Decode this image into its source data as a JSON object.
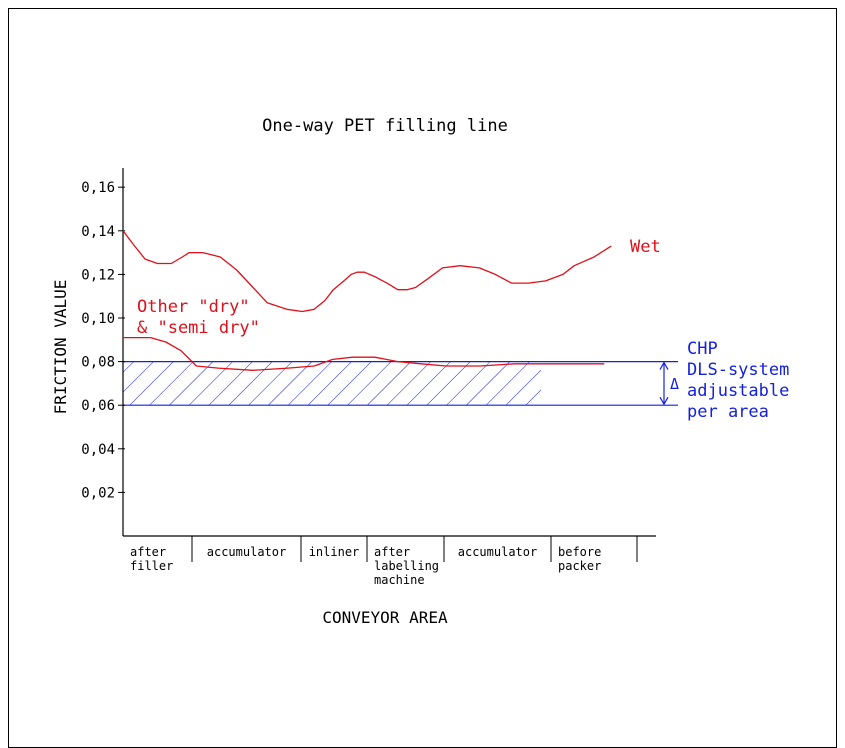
{
  "chart_data": {
    "type": "line",
    "title": "One-way PET filling line",
    "xlabel": "CONVEYOR AREA",
    "ylabel": "FRICTION VALUE",
    "ylim": [
      0,
      0.17
    ],
    "yticks": [
      "0,16",
      "0,14",
      "0,12",
      "0,10",
      "0,08",
      "0,06",
      "0,04",
      "0,02"
    ],
    "ytick_values": [
      0.16,
      0.14,
      0.12,
      0.1,
      0.08,
      0.06,
      0.04,
      0.02
    ],
    "categories": [
      {
        "lines": [
          "after",
          "filler"
        ]
      },
      {
        "lines": [
          "accumulator"
        ]
      },
      {
        "lines": [
          "inliner"
        ]
      },
      {
        "lines": [
          "after",
          "labelling",
          "machine"
        ]
      },
      {
        "lines": [
          "accumulator"
        ]
      },
      {
        "lines": [
          "before",
          "packer"
        ]
      }
    ],
    "series": [
      {
        "name": "Wet",
        "color": "#e0101a",
        "x": [
          0.0,
          0.17,
          0.32,
          0.5,
          0.7,
          0.86,
          0.96,
          1.1,
          1.26,
          1.41,
          1.56,
          1.69,
          1.87,
          2.02,
          2.2,
          2.36,
          2.49,
          2.65,
          2.76,
          2.85,
          2.96,
          3.1,
          3.26,
          3.4,
          3.52,
          3.63,
          3.79,
          3.98,
          4.15,
          4.33,
          4.48,
          4.63,
          4.79,
          4.95,
          5.14,
          5.27,
          5.5,
          5.7
        ],
        "y": [
          0.14,
          0.133,
          0.127,
          0.125,
          0.125,
          0.128,
          0.13,
          0.13,
          0.128,
          0.122,
          0.114,
          0.107,
          0.104,
          0.103,
          0.104,
          0.108,
          0.113,
          0.117,
          0.12,
          0.121,
          0.121,
          0.119,
          0.116,
          0.113,
          0.113,
          0.114,
          0.118,
          0.123,
          0.124,
          0.123,
          0.12,
          0.116,
          0.116,
          0.117,
          0.12,
          0.124,
          0.128,
          0.133
        ]
      },
      {
        "name": "Other \"dry\" & \"semi dry\"",
        "color": "#e0101a",
        "x": [
          0.0,
          0.4,
          0.62,
          0.84,
          1.04,
          1.24,
          1.56,
          1.88,
          2.2,
          2.48,
          2.78,
          3.1,
          3.4,
          3.7,
          4.02,
          4.34,
          4.66,
          4.98,
          5.3,
          5.62
        ],
        "y": [
          0.091,
          0.091,
          0.089,
          0.085,
          0.078,
          0.077,
          0.076,
          0.077,
          0.078,
          0.081,
          0.082,
          0.082,
          0.08,
          0.079,
          0.078,
          0.078,
          0.079,
          0.079,
          0.079,
          0.079
        ]
      }
    ],
    "band": {
      "label_lines": [
        "CHP",
        "DLS-system",
        "adjustable",
        "per area"
      ],
      "range": [
        0.06,
        0.08
      ],
      "color": "#1420e0",
      "delta_symbol": "Δ"
    },
    "annotations": {
      "wet_label": "Wet",
      "dry_label_lines": [
        "Other \"dry\"",
        "& \"semi dry\""
      ]
    },
    "grid": false,
    "legend": "none"
  }
}
